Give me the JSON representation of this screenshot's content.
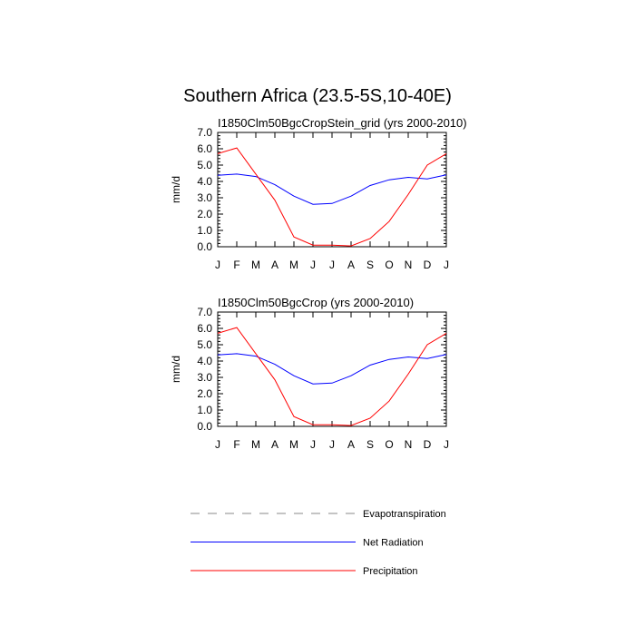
{
  "figure": {
    "title": "Southern Africa (23.5-5S,10-40E)"
  },
  "chart_data": [
    {
      "type": "line",
      "title": "I1850Clm50BgcCropStein_grid (yrs 2000-2010)",
      "ylabel": "mm/d",
      "xlabel": "",
      "ylim": [
        0,
        7
      ],
      "yticks": [
        "0.0",
        "1.0",
        "2.0",
        "3.0",
        "4.0",
        "5.0",
        "6.0",
        "7.0"
      ],
      "categories": [
        "J",
        "F",
        "M",
        "A",
        "M",
        "J",
        "J",
        "A",
        "S",
        "O",
        "N",
        "D",
        "J"
      ],
      "series": [
        {
          "name": "Net Radiation",
          "color": "#0000ff",
          "values": [
            4.38,
            4.45,
            4.3,
            3.8,
            3.1,
            2.6,
            2.65,
            3.1,
            3.75,
            4.1,
            4.25,
            4.15,
            4.4
          ]
        },
        {
          "name": "Precipitation",
          "color": "#ff0000",
          "values": [
            5.7,
            6.05,
            4.45,
            2.85,
            0.6,
            0.1,
            0.1,
            0.05,
            0.5,
            1.55,
            3.2,
            5.0,
            5.7
          ]
        }
      ]
    },
    {
      "type": "line",
      "title": "I1850Clm50BgcCrop (yrs 2000-2010)",
      "ylabel": "mm/d",
      "xlabel": "",
      "ylim": [
        0,
        7
      ],
      "yticks": [
        "0.0",
        "1.0",
        "2.0",
        "3.0",
        "4.0",
        "5.0",
        "6.0",
        "7.0"
      ],
      "categories": [
        "J",
        "F",
        "M",
        "A",
        "M",
        "J",
        "J",
        "A",
        "S",
        "O",
        "N",
        "D",
        "J"
      ],
      "series": [
        {
          "name": "Net Radiation",
          "color": "#0000ff",
          "values": [
            4.38,
            4.45,
            4.3,
            3.8,
            3.1,
            2.6,
            2.65,
            3.1,
            3.75,
            4.1,
            4.25,
            4.15,
            4.4
          ]
        },
        {
          "name": "Precipitation",
          "color": "#ff0000",
          "values": [
            5.7,
            6.05,
            4.45,
            2.85,
            0.6,
            0.1,
            0.1,
            0.05,
            0.5,
            1.55,
            3.2,
            5.0,
            5.7
          ]
        }
      ]
    }
  ],
  "legend": {
    "items": [
      {
        "label": "Evapotranspiration",
        "color": "#888888",
        "style": "dashed"
      },
      {
        "label": "Net Radiation",
        "color": "#0000ff",
        "style": "solid"
      },
      {
        "label": "Precipitation",
        "color": "#ff0000",
        "style": "solid"
      }
    ]
  }
}
